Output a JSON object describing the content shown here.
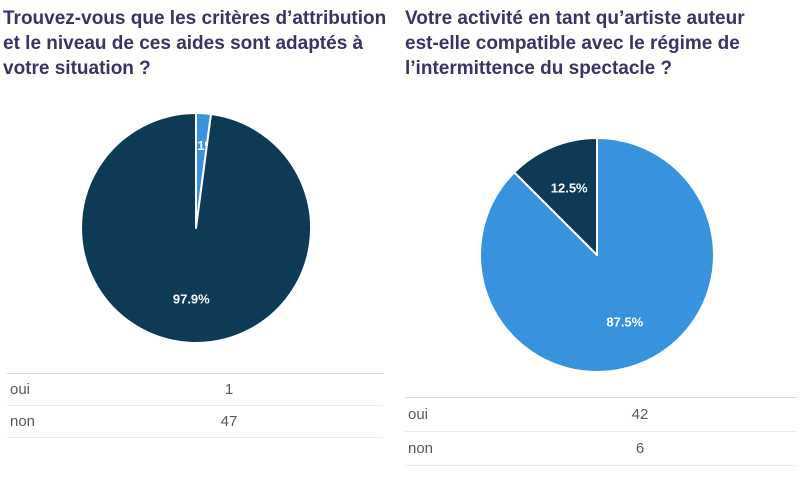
{
  "palette": {
    "pie_blue": "#3892de",
    "pie_navy": "#0e3a56",
    "title_color": "#3e3163",
    "table_text_color": "#55595e",
    "table_border_color": "#e4ecf4"
  },
  "chart_data": [
    {
      "type": "pie",
      "title": "Trouvez-vous que les critères d’attribution et le niveau de ces aides sont adaptés à votre situation ?",
      "labels": [
        "oui",
        "non"
      ],
      "values": [
        1,
        47
      ],
      "percent_labels": [
        "2.1%",
        "97.9%"
      ],
      "colors": [
        "#3892de",
        "#0e3a56"
      ],
      "rotation_deg": 0,
      "direction": "clockwise",
      "legend_position": "none",
      "slice_label_color": "#ffffff"
    },
    {
      "type": "pie",
      "title": "Votre activité en tant qu’artiste auteur est-elle compatible avec le régime de l’intermittence du spectacle ?",
      "labels": [
        "oui",
        "non"
      ],
      "values": [
        42,
        6
      ],
      "percent_labels": [
        "87.5%",
        "12.5%"
      ],
      "colors": [
        "#3892de",
        "#0e3a56"
      ],
      "rotation_deg": 0,
      "direction": "clockwise",
      "legend_position": "none",
      "slice_label_color": "#ffffff"
    }
  ]
}
